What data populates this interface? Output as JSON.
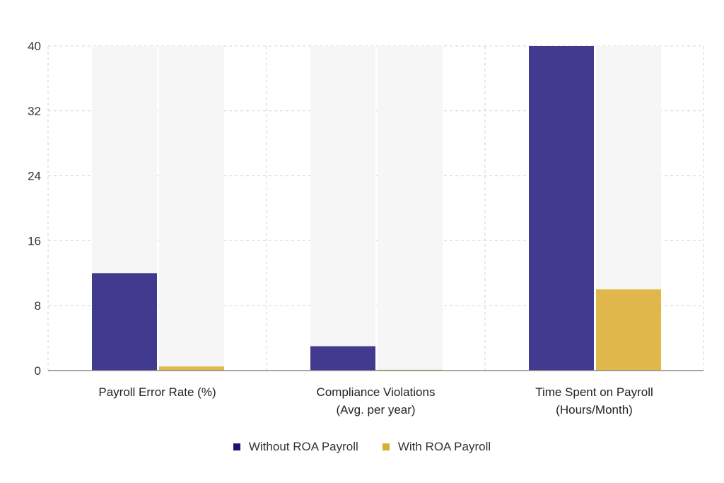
{
  "chart_data": {
    "type": "bar",
    "categories": [
      [
        "Payroll Error Rate (%)"
      ],
      [
        "Compliance Violations",
        "(Avg. per year)"
      ],
      [
        "Time Spent on Payroll",
        "(Hours/Month)"
      ]
    ],
    "series": [
      {
        "name": "Without ROA Payroll",
        "values": [
          12,
          3,
          40
        ],
        "color": "#413a8e"
      },
      {
        "name": "With ROA Payroll",
        "values": [
          0.5,
          0.1,
          10
        ],
        "color": "#e0b74a"
      }
    ],
    "ylim": [
      0,
      40
    ],
    "yticks": [
      "0",
      "8",
      "16",
      "24",
      "32",
      "40"
    ],
    "grid": true,
    "legend_position": "bottom-center",
    "legend_swatch_colors": [
      "#1a1670",
      "#d9ac32"
    ],
    "xlabel": "",
    "ylabel": "",
    "title": ""
  }
}
